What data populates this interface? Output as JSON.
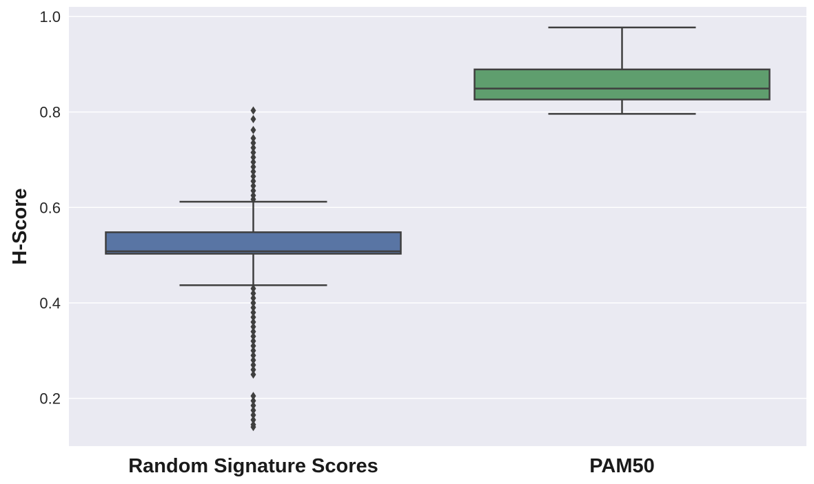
{
  "chart_data": {
    "type": "box",
    "title": "",
    "xlabel": "",
    "ylabel": "H-Score",
    "ylim": [
      0.1,
      1.02
    ],
    "yticks": [
      0.2,
      0.4,
      0.6,
      0.8,
      1.0
    ],
    "ytick_labels": [
      "0.2",
      "0.4",
      "0.6",
      "0.8",
      "1.0"
    ],
    "grid": true,
    "background_color": "#EAEAF2",
    "categories": [
      "Random Signature Scores",
      "PAM50"
    ],
    "boxes": [
      {
        "category": "Random Signature Scores",
        "color": "#5975A4",
        "whisker_low": 0.437,
        "q1": 0.503,
        "median": 0.508,
        "q3": 0.548,
        "whisker_high": 0.612,
        "outliers_high": [
          0.617,
          0.625,
          0.635,
          0.645,
          0.655,
          0.665,
          0.675,
          0.685,
          0.695,
          0.705,
          0.715,
          0.725,
          0.735,
          0.745,
          0.762,
          0.785,
          0.803
        ],
        "outliers_low": [
          0.43,
          0.42,
          0.41,
          0.4,
          0.39,
          0.38,
          0.37,
          0.36,
          0.35,
          0.34,
          0.33,
          0.32,
          0.31,
          0.3,
          0.29,
          0.28,
          0.27,
          0.26,
          0.25,
          0.205,
          0.195,
          0.185,
          0.175,
          0.165,
          0.155,
          0.145,
          0.14
        ]
      },
      {
        "category": "PAM50",
        "color": "#5F9E6E",
        "whisker_low": 0.796,
        "q1": 0.826,
        "median": 0.849,
        "q3": 0.889,
        "whisker_high": 0.977,
        "outliers_high": [],
        "outliers_low": []
      }
    ]
  }
}
